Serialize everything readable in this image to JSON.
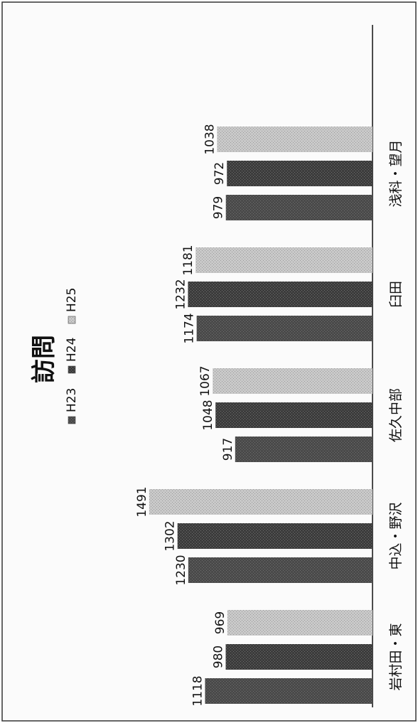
{
  "chart_data": {
    "type": "bar",
    "orientation": "horizontal",
    "title": "訪問",
    "categories": [
      "岩村田・東",
      "中込・野沢",
      "佐久中部",
      "臼田",
      "浅科・望月"
    ],
    "series": [
      {
        "name": "H23",
        "values": [
          1118,
          1230,
          917,
          1174,
          979
        ]
      },
      {
        "name": "H24",
        "values": [
          980,
          1302,
          1048,
          1232,
          972
        ]
      },
      {
        "name": "H25",
        "values": [
          969,
          1491,
          1067,
          1181,
          1038
        ]
      }
    ],
    "xlim": [
      0,
      1600
    ],
    "grid": false,
    "legend_position": "top",
    "colors": [
      "#4a4a4a",
      "#3c3c3c",
      "#c9c9c9"
    ]
  }
}
